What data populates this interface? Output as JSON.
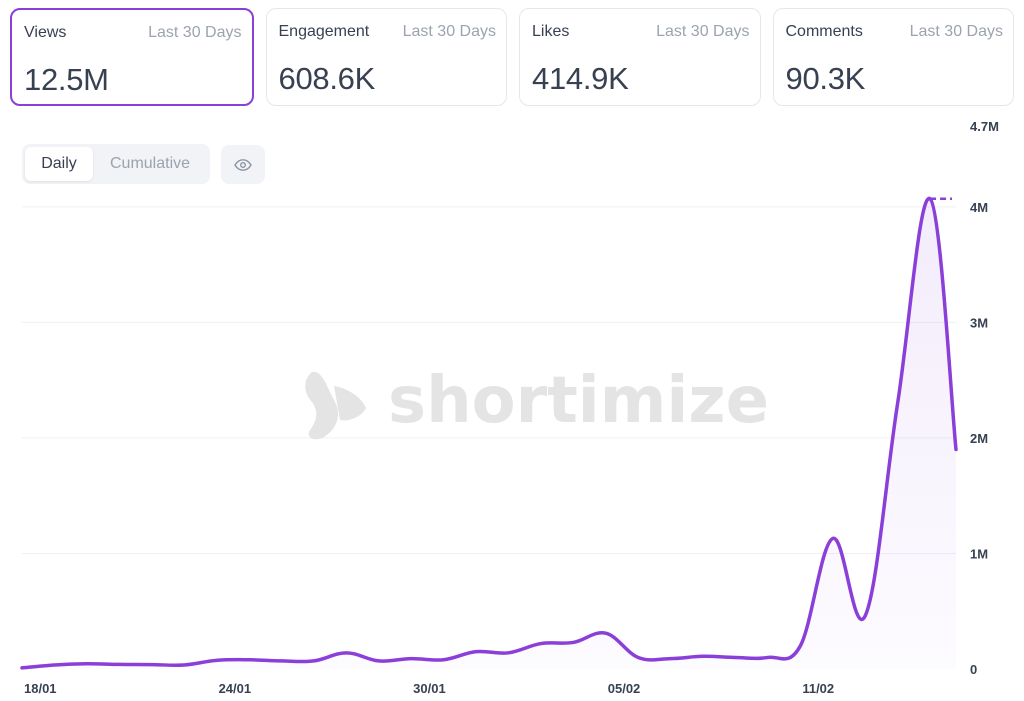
{
  "cards": [
    {
      "label": "Views",
      "period": "Last 30 Days",
      "value": "12.5M",
      "active": true
    },
    {
      "label": "Engagement",
      "period": "Last 30 Days",
      "value": "608.6K",
      "active": false
    },
    {
      "label": "Likes",
      "period": "Last 30 Days",
      "value": "414.9K",
      "active": false
    },
    {
      "label": "Comments",
      "period": "Last 30 Days",
      "value": "90.3K",
      "active": false
    }
  ],
  "toggle": {
    "daily": "Daily",
    "cumulative": "Cumulative",
    "selected": "Daily"
  },
  "icons": {
    "visibility": "eye-icon",
    "watermark": "shortimize-logo-icon"
  },
  "watermark": "shortimize",
  "colors": {
    "accent": "#8b3fd9",
    "grid": "#f0f0f3",
    "text": "#374151",
    "muted": "#9ca3af"
  },
  "chart_data": {
    "type": "area",
    "y_ticks": [
      {
        "value": 0,
        "label": "0"
      },
      {
        "value": 1000000,
        "label": "1M"
      },
      {
        "value": 2000000,
        "label": "2M"
      },
      {
        "value": 3000000,
        "label": "3M"
      },
      {
        "value": 4000000,
        "label": "4M"
      },
      {
        "value": 4700000,
        "label": "4.7M"
      }
    ],
    "x_ticks": [
      {
        "index": 0,
        "label": "18/01"
      },
      {
        "index": 6,
        "label": "24/01"
      },
      {
        "index": 12,
        "label": "30/01"
      },
      {
        "index": 18,
        "label": "05/02"
      },
      {
        "index": 24,
        "label": "11/02"
      }
    ],
    "ylim": [
      0,
      4700000
    ],
    "x_count_range": [
      0,
      28.8
    ],
    "grid": true,
    "series": [
      {
        "values": [
          10000,
          35000,
          45000,
          40000,
          38000,
          35000,
          75000,
          80000,
          70000,
          70000,
          140000,
          70000,
          90000,
          80000,
          150000,
          140000,
          220000,
          230000,
          310000,
          100000,
          90000,
          110000,
          100000,
          100000,
          200000,
          1130000,
          460000,
          2300000,
          4070000,
          1900000
        ],
        "peak_marker": 4070000
      }
    ]
  }
}
